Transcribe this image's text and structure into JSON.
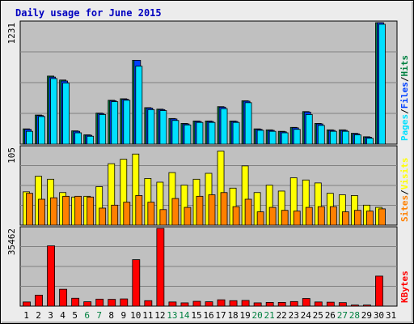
{
  "title": "Daily usage for June 2015",
  "colors": {
    "frame_bg": "#ECECEC",
    "plot_bg": "#C0C0C0",
    "title": "#0000C0",
    "hits": "#008040",
    "files": "#0040FF",
    "pages": "#00E0FF",
    "visits": "#FFFF00",
    "sites": "#FF8000",
    "kbytes": "#FF0000",
    "weekend": "#008040"
  },
  "chart_data": {
    "type": "bar",
    "categories": [
      "1",
      "2",
      "3",
      "4",
      "5",
      "6",
      "7",
      "8",
      "9",
      "10",
      "11",
      "12",
      "13",
      "14",
      "15",
      "16",
      "17",
      "18",
      "19",
      "20",
      "21",
      "22",
      "23",
      "24",
      "25",
      "26",
      "27",
      "28",
      "29",
      "30",
      "31"
    ],
    "weekend_days": [
      "6",
      "7",
      "13",
      "14",
      "20",
      "21",
      "27",
      "28"
    ],
    "panels": [
      {
        "id": "hits",
        "scale_max": 1231,
        "ylabel": [
          {
            "text": "Pages",
            "color": "#00E0FF"
          },
          {
            "text": "Files",
            "color": "#0040FF"
          },
          {
            "text": "Hits",
            "color": "#008040"
          }
        ],
        "series": [
          {
            "name": "Hits",
            "values": [
              155,
              295,
              690,
              650,
              135,
              95,
              315,
              445,
              460,
              850,
              370,
              355,
              260,
              210,
              235,
              235,
              380,
              235,
              440,
              155,
              145,
              130,
              170,
              330,
              210,
              145,
              145,
              110,
              75,
              1231,
              0
            ]
          },
          {
            "name": "Files",
            "values": [
              150,
              290,
              680,
              640,
              130,
              90,
              310,
              440,
              455,
              850,
              365,
              350,
              255,
              205,
              230,
              230,
              375,
              230,
              435,
              150,
              140,
              125,
              165,
              325,
              205,
              140,
              140,
              105,
              70,
              1231,
              0
            ]
          },
          {
            "name": "Pages",
            "values": [
              130,
              280,
              665,
              620,
              115,
              80,
              300,
              430,
              445,
              790,
              350,
              340,
              240,
              195,
              220,
              220,
              360,
              220,
              420,
              140,
              130,
              115,
              150,
              300,
              190,
              130,
              130,
              95,
              60,
              1215,
              0
            ]
          }
        ]
      },
      {
        "id": "visits",
        "scale_max": 105,
        "ylabel": [
          {
            "text": "Sites",
            "color": "#FF8000"
          },
          {
            "text": "Visits",
            "color": "#FFFF00"
          }
        ],
        "series": [
          {
            "name": "Visits",
            "values": [
              45,
              66,
              62,
              44,
              38,
              39,
              52,
              83,
              89,
              96,
              63,
              58,
              71,
              54,
              62,
              70,
              100,
              50,
              80,
              44,
              54,
              46,
              64,
              61,
              57,
              43,
              41,
              40,
              27,
              24,
              0
            ]
          },
          {
            "name": "Sites",
            "values": [
              43,
              35,
              37,
              39,
              39,
              38,
              23,
              27,
              31,
              40,
              31,
              21,
              36,
              24,
              39,
              41,
              44,
              25,
              35,
              18,
              24,
              20,
              19,
              24,
              25,
              25,
              18,
              20,
              19,
              22,
              0
            ]
          }
        ]
      },
      {
        "id": "kbytes",
        "scale_max": 35462,
        "ylabel": [
          {
            "text": "KBytes",
            "color": "#FF0000"
          }
        ],
        "series": [
          {
            "name": "KBytes",
            "values": [
              1900,
              5000,
              27500,
              7700,
              3600,
              2000,
              3200,
              3100,
              3300,
              21200,
              2500,
              35462,
              1900,
              1500,
              2200,
              2000,
              2900,
              2500,
              2600,
              1500,
              1700,
              1700,
              2100,
              3500,
              1900,
              1800,
              1600,
              500,
              500,
              13700,
              0
            ]
          }
        ]
      }
    ]
  }
}
